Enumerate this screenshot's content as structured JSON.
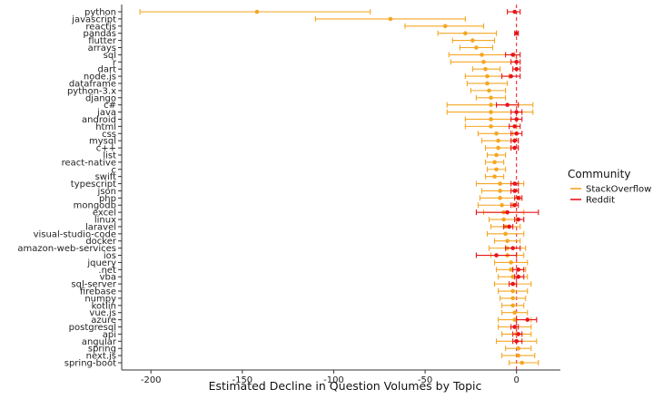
{
  "chart_data": {
    "type": "dot-errorbar",
    "title": "",
    "xlabel": "Estimated Decline in Question Volumes by Topic",
    "ylabel": "",
    "xlim": [
      -216,
      24
    ],
    "xticks": [
      -200,
      -150,
      -100,
      -50,
      0
    ],
    "reference_line": 0,
    "categories": [
      "python",
      "javascript",
      "reactjs",
      "pandas",
      "flutter",
      "arrays",
      "sql",
      "r",
      "dart",
      "node.js",
      "dataframe",
      "python-3.x",
      "django",
      "c#",
      "java",
      "android",
      "html",
      "css",
      "mysql",
      "c++",
      "list",
      "react-native",
      "c",
      "swift",
      "typescript",
      "json",
      "php",
      "mongodb",
      "excel",
      "linux",
      "laravel",
      "visual-studio-code",
      "docker",
      "amazon-web-services",
      "ios",
      "jquery",
      ".net",
      "vba",
      "sql-server",
      "firebase",
      "numpy",
      "kotlin",
      "vue.js",
      "azure",
      "postgresql",
      "api",
      "angular",
      "spring",
      "next.js",
      "spring-boot"
    ],
    "legend": {
      "title": "Community",
      "position": "right"
    },
    "series": [
      {
        "name": "StackOverflow",
        "color": "#F5A623",
        "values": [
          -142,
          -69,
          -39,
          -28,
          -24,
          -22,
          -19,
          -18,
          -17,
          -16,
          -16,
          -15,
          -14,
          -14,
          -14,
          -14,
          -14,
          -11,
          -10,
          -10,
          -11,
          -12,
          -11,
          -12,
          -9,
          -9,
          -9,
          -8,
          -7,
          -7,
          -6,
          -6,
          -5,
          -5,
          -5,
          -3,
          -3,
          -2,
          -2,
          -2,
          -2,
          -2,
          -1,
          -1,
          -1,
          0,
          0,
          1,
          1,
          3
        ],
        "lower": [
          -206,
          -110,
          -61,
          -43,
          -35,
          -31,
          -37,
          -36,
          -24,
          -28,
          -27,
          -25,
          -22,
          -38,
          -38,
          -28,
          -28,
          -21,
          -19,
          -17,
          -16,
          -17,
          -16,
          -17,
          -22,
          -19,
          -20,
          -21,
          -18,
          -15,
          -14,
          -16,
          -12,
          -15,
          -14,
          -12,
          -11,
          -10,
          -12,
          -10,
          -9,
          -8,
          -8,
          -10,
          -10,
          -8,
          -11,
          -6,
          -8,
          -4
        ],
        "upper": [
          -80,
          -28,
          -18,
          -11,
          -12,
          -13,
          -1,
          0,
          -9,
          -4,
          -5,
          -6,
          -6,
          9,
          9,
          0,
          0,
          -2,
          -1,
          -3,
          -6,
          -7,
          -6,
          -7,
          4,
          1,
          2,
          -2,
          4,
          0,
          2,
          4,
          2,
          5,
          4,
          6,
          5,
          6,
          8,
          6,
          5,
          4,
          6,
          8,
          8,
          8,
          11,
          8,
          10,
          12
        ]
      },
      {
        "name": "Reddit",
        "color": "#E8141A",
        "values": [
          -1,
          null,
          null,
          0,
          null,
          null,
          -2,
          0,
          0,
          -3,
          null,
          null,
          null,
          -5,
          0,
          0,
          -1,
          0,
          -1,
          -1,
          null,
          null,
          null,
          null,
          -1,
          -1,
          1,
          -1,
          -5,
          1,
          -4,
          null,
          null,
          -2,
          -11,
          null,
          1,
          1,
          -2,
          null,
          null,
          null,
          null,
          6,
          -1,
          1,
          0,
          null,
          null,
          null
        ],
        "lower": [
          -5,
          null,
          null,
          -1,
          null,
          null,
          -6,
          -3,
          -2,
          -8,
          null,
          null,
          null,
          -11,
          -3,
          -3,
          -4,
          -3,
          -3,
          -3,
          null,
          null,
          null,
          null,
          -3,
          -3,
          -1,
          -3,
          -22,
          -1,
          -7,
          null,
          null,
          -6,
          -22,
          null,
          -2,
          -1,
          -4,
          null,
          null,
          null,
          null,
          0,
          -3,
          -2,
          -2,
          null,
          null,
          null
        ],
        "upper": [
          2,
          null,
          null,
          1,
          null,
          null,
          2,
          2,
          2,
          2,
          null,
          null,
          null,
          1,
          3,
          3,
          2,
          3,
          1,
          1,
          null,
          null,
          null,
          null,
          1,
          1,
          3,
          1,
          12,
          4,
          -2,
          null,
          null,
          2,
          0,
          null,
          4,
          4,
          0,
          null,
          null,
          null,
          null,
          11,
          1,
          3,
          3,
          null,
          null,
          null
        ]
      }
    ]
  }
}
